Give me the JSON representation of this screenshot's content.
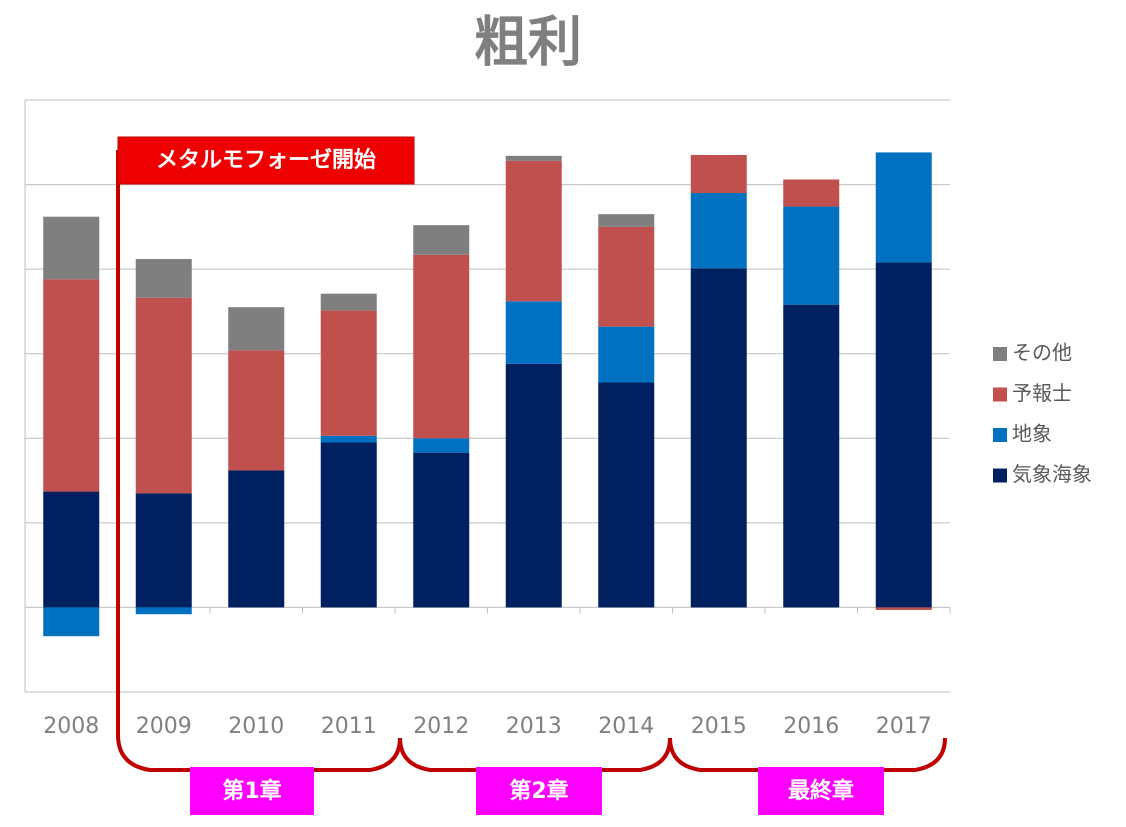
{
  "chart_data": {
    "type": "stacked_bar",
    "title": "粗利",
    "categories": [
      "2008",
      "2009",
      "2010",
      "2011",
      "2012",
      "2013",
      "2014",
      "2015",
      "2016",
      "2017"
    ],
    "series": [
      {
        "name": "気象海象",
        "color": "#002060",
        "values": [
          1.37,
          1.35,
          1.62,
          1.95,
          1.83,
          2.88,
          2.66,
          4.01,
          3.58,
          4.08
        ]
      },
      {
        "name": "地象",
        "color": "#0070c0",
        "values": [
          -0.34,
          -0.08,
          0,
          0.08,
          0.17,
          0.74,
          0.66,
          0.89,
          1.16,
          1.3
        ]
      },
      {
        "name": "予報士",
        "color": "#c0504d",
        "values": [
          2.51,
          2.31,
          1.42,
          1.48,
          2.17,
          1.66,
          1.18,
          0.45,
          0.32,
          -0.03
        ]
      },
      {
        "name": "その他",
        "color": "#7f7f7f",
        "values": [
          0.74,
          0.46,
          0.51,
          0.2,
          0.35,
          0.06,
          0.15,
          0,
          0,
          0
        ]
      }
    ],
    "ylim": [
      -1,
      6
    ],
    "yticks": [
      -1,
      0,
      1,
      2,
      3,
      4,
      5,
      6
    ],
    "grid": true,
    "legend": "right",
    "annotations": {
      "start": "メタルモフォーゼ開始",
      "chapters": [
        "第1章",
        "第2章",
        "最終章"
      ]
    }
  }
}
